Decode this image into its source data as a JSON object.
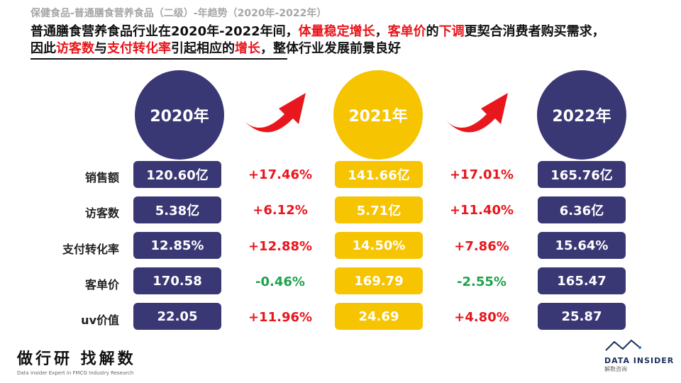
{
  "header": {
    "subtitle": "保健食品-普通膳食营养食品（二级）-年趋势（2020年-2022年）",
    "headline_parts": [
      {
        "text": "普通膳食营养食品行业在2020年-2022年间，",
        "red": false
      },
      {
        "text": "体量稳定增长",
        "red": true
      },
      {
        "text": "，",
        "red": false
      },
      {
        "text": "客单价",
        "red": true
      },
      {
        "text": "的",
        "red": false
      },
      {
        "text": "下调",
        "red": true
      },
      {
        "text": "更契合消费者购买需求，",
        "red": false
      },
      {
        "text": "因此",
        "red": false
      },
      {
        "text": "访客数",
        "red": true
      },
      {
        "text": "与",
        "red": false
      },
      {
        "text": "支付转化率",
        "red": true
      },
      {
        "text": "引起相应的",
        "red": false
      },
      {
        "text": "增长",
        "red": true
      },
      {
        "text": "，整体行业发展前景良好",
        "red": false
      }
    ]
  },
  "years": [
    "2020年",
    "2021年",
    "2022年"
  ],
  "row_labels": [
    "销售额",
    "访客数",
    "支付转化率",
    "客单价",
    "uv价值"
  ],
  "values_2020": [
    "120.60亿",
    "5.38亿",
    "12.85%",
    "170.58",
    "22.05"
  ],
  "values_2021": [
    "141.66亿",
    "5.71亿",
    "14.50%",
    "169.79",
    "24.69"
  ],
  "values_2022": [
    "165.76亿",
    "6.36亿",
    "15.64%",
    "165.47",
    "25.87"
  ],
  "change_20_21": [
    "+17.46%",
    "+6.12%",
    "+12.88%",
    "-0.46%",
    "+11.96%"
  ],
  "change_21_22": [
    "+17.01%",
    "+11.40%",
    "+7.86%",
    "-2.55%",
    "+4.80%"
  ],
  "footer": {
    "left_logo": "做行研 找解数",
    "left_tagline": "Data insider Expert in FMCG Industry Research",
    "right_logo": "DATA INSIDER",
    "right_logo_cn": "解数咨询"
  },
  "colors": {
    "navy": "#3a3775",
    "yellow": "#f6c400",
    "red": "#e8161d",
    "green": "#1ea24a"
  }
}
